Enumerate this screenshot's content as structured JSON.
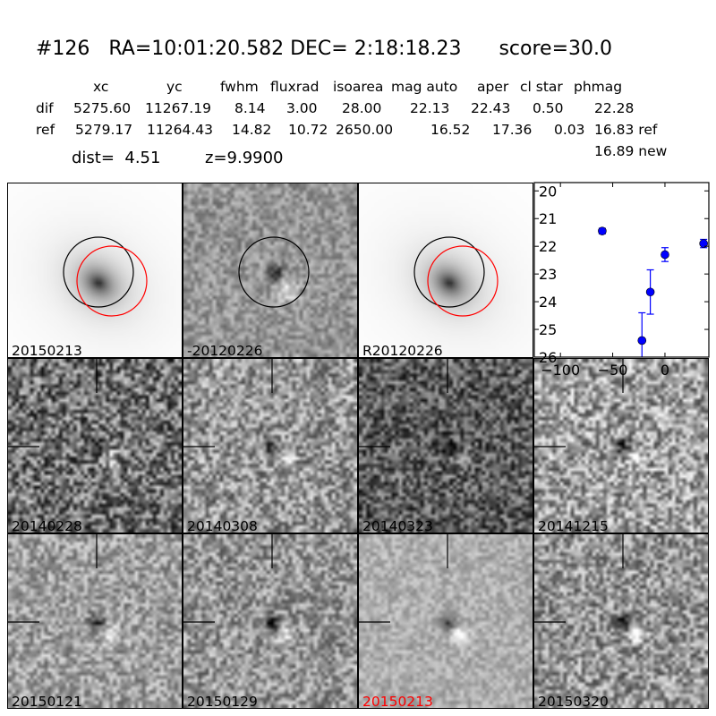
{
  "header": {
    "title": "#126   RA=10:01:20.582 DEC= 2:18:18.23      score=30.0"
  },
  "table": {
    "columns": [
      "xc",
      "yc",
      "fwhm",
      "fluxrad",
      "isoarea",
      "mag auto",
      "aper",
      "cl star",
      "phmag"
    ],
    "rows": [
      {
        "label": "dif",
        "values": [
          "5275.60",
          "11267.19",
          "8.14",
          "3.00",
          "28.00",
          "22.13",
          "22.43",
          "0.50",
          "22.28"
        ]
      },
      {
        "label": "ref",
        "values": [
          "5279.17",
          "11264.43",
          "14.82",
          "10.72",
          "2650.00",
          "16.52",
          "17.36",
          "0.03",
          "16.83 ref"
        ]
      }
    ],
    "extra": "16.89 new",
    "dist": "dist=  4.51",
    "z": "z=9.9900"
  },
  "stamps": [
    {
      "label": "20150213",
      "kind": "galaxy",
      "circles": [
        "black",
        "red"
      ]
    },
    {
      "label": "-20120226",
      "kind": "diff",
      "circles": [
        "black"
      ]
    },
    {
      "label": "R20120226",
      "kind": "galaxy",
      "circles": [
        "black",
        "red"
      ]
    },
    {
      "label": "20140228",
      "kind": "noise"
    },
    {
      "label": "20140308",
      "kind": "noise"
    },
    {
      "label": "20140323",
      "kind": "noise"
    },
    {
      "label": "20141215",
      "kind": "noise"
    },
    {
      "label": "20150121",
      "kind": "noise"
    },
    {
      "label": "20150129",
      "kind": "noise"
    },
    {
      "label": "20150213",
      "kind": "noise",
      "label_color": "#ff0000"
    },
    {
      "label": "20150320",
      "kind": "noise"
    }
  ],
  "chart_data": {
    "type": "scatter",
    "xlim": [
      -125,
      42
    ],
    "ylim": [
      26,
      19.7
    ],
    "y_inverted": true,
    "xticks": [
      -100,
      -50,
      0
    ],
    "xtick_labels": [
      "−100",
      "−50",
      "0"
    ],
    "yticks": [
      20,
      21,
      22,
      23,
      24,
      25,
      26
    ],
    "ytick_labels": [
      "20",
      "21",
      "22",
      "23",
      "24",
      "25",
      "26"
    ],
    "marker_color": "#0000ff",
    "points": [
      {
        "x": -60,
        "y": 21.45,
        "err_lo": 0.1,
        "err_hi": 0.1
      },
      {
        "x": -22,
        "y": 25.4,
        "err_lo": 1.0,
        "err_hi": 1.0
      },
      {
        "x": -14,
        "y": 23.65,
        "err_lo": 0.8,
        "err_hi": 0.8
      },
      {
        "x": 0,
        "y": 22.3,
        "err_lo": 0.25,
        "err_hi": 0.25
      },
      {
        "x": 37,
        "y": 21.9,
        "err_lo": 0.15,
        "err_hi": 0.15
      }
    ]
  }
}
